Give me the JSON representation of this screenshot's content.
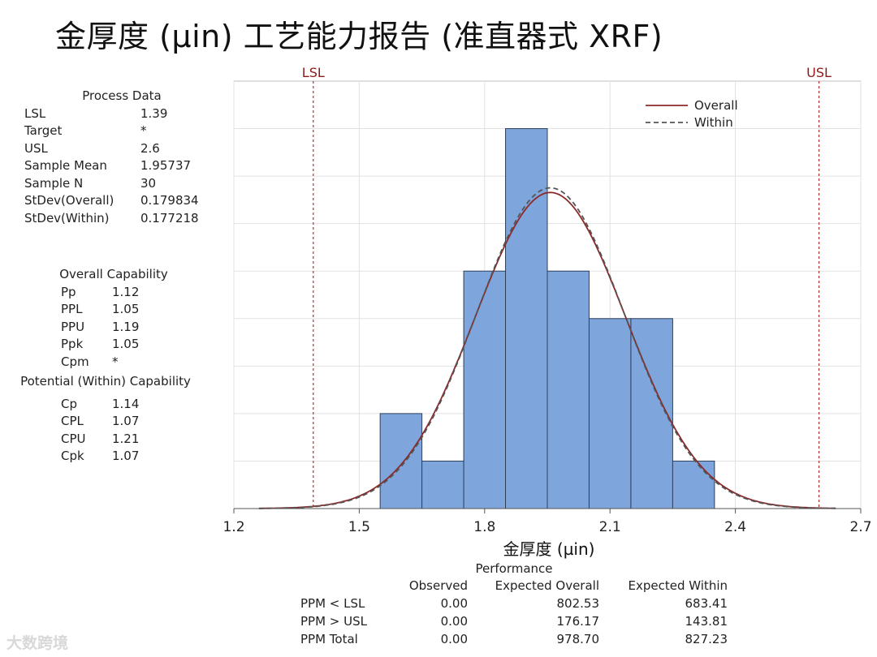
{
  "title": "金厚度 (µin) 工艺能力报告 (准直器式 XRF)",
  "process_data": {
    "header": "Process Data",
    "rows": [
      {
        "label": "LSL",
        "value": "1.39"
      },
      {
        "label": "Target",
        "value": "*"
      },
      {
        "label": "USL",
        "value": "2.6"
      },
      {
        "label": "Sample Mean",
        "value": "1.95737"
      },
      {
        "label": "Sample N",
        "value": "30"
      },
      {
        "label": "StDev(Overall)",
        "value": "0.179834"
      },
      {
        "label": "StDev(Within)",
        "value": "0.177218"
      }
    ]
  },
  "overall_capability": {
    "header": "Overall Capability",
    "rows": [
      {
        "label": "Pp",
        "value": "1.12"
      },
      {
        "label": "PPL",
        "value": "1.05"
      },
      {
        "label": "PPU",
        "value": "1.19"
      },
      {
        "label": "Ppk",
        "value": "1.05"
      },
      {
        "label": "Cpm",
        "value": "*"
      }
    ]
  },
  "potential_capability": {
    "header": "Potential (Within) Capability",
    "rows": [
      {
        "label": "Cp",
        "value": "1.14"
      },
      {
        "label": "CPL",
        "value": "1.07"
      },
      {
        "label": "CPU",
        "value": "1.21"
      },
      {
        "label": "Cpk",
        "value": "1.07"
      }
    ]
  },
  "performance": {
    "title": "Performance",
    "columns": [
      "",
      "Observed",
      "Expected Overall",
      "Expected Within"
    ],
    "rows": [
      {
        "label": "PPM < LSL",
        "observed": "0.00",
        "overall": "802.53",
        "within": "683.41"
      },
      {
        "label": "PPM > USL",
        "observed": "0.00",
        "overall": "176.17",
        "within": "143.81"
      },
      {
        "label": "PPM Total",
        "observed": "0.00",
        "overall": "978.70",
        "within": "827.23"
      }
    ]
  },
  "watermark": "大数跨境",
  "chart_data": {
    "type": "histogram",
    "xlabel": "金厚度 (µin)",
    "xlim": [
      1.2,
      2.7
    ],
    "xticks": [
      "1.2",
      "1.5",
      "1.8",
      "2.1",
      "2.4",
      "2.7"
    ],
    "bins": [
      {
        "x0": 1.55,
        "x1": 1.65,
        "count": 2
      },
      {
        "x0": 1.65,
        "x1": 1.75,
        "count": 1
      },
      {
        "x0": 1.75,
        "x1": 1.85,
        "count": 5
      },
      {
        "x0": 1.85,
        "x1": 1.95,
        "count": 8
      },
      {
        "x0": 1.95,
        "x1": 2.05,
        "count": 5
      },
      {
        "x0": 2.05,
        "x1": 2.15,
        "count": 4
      },
      {
        "x0": 2.15,
        "x1": 2.25,
        "count": 4
      },
      {
        "x0": 2.25,
        "x1": 2.35,
        "count": 1
      }
    ],
    "ymax": 9,
    "spec_limits": [
      {
        "name": "LSL",
        "value": 1.39
      },
      {
        "name": "USL",
        "value": 2.6
      }
    ],
    "curves": [
      {
        "name": "Overall",
        "mean": 1.95737,
        "sd": 0.179834,
        "style": "solid",
        "color": "#8b2a2a"
      },
      {
        "name": "Within",
        "mean": 1.95737,
        "sd": 0.177218,
        "style": "dashed",
        "color": "#555555"
      }
    ],
    "bin_width": 0.1,
    "n": 30,
    "legend_position": "top-right",
    "bar_color": "#7ea6dc",
    "grid": true
  }
}
